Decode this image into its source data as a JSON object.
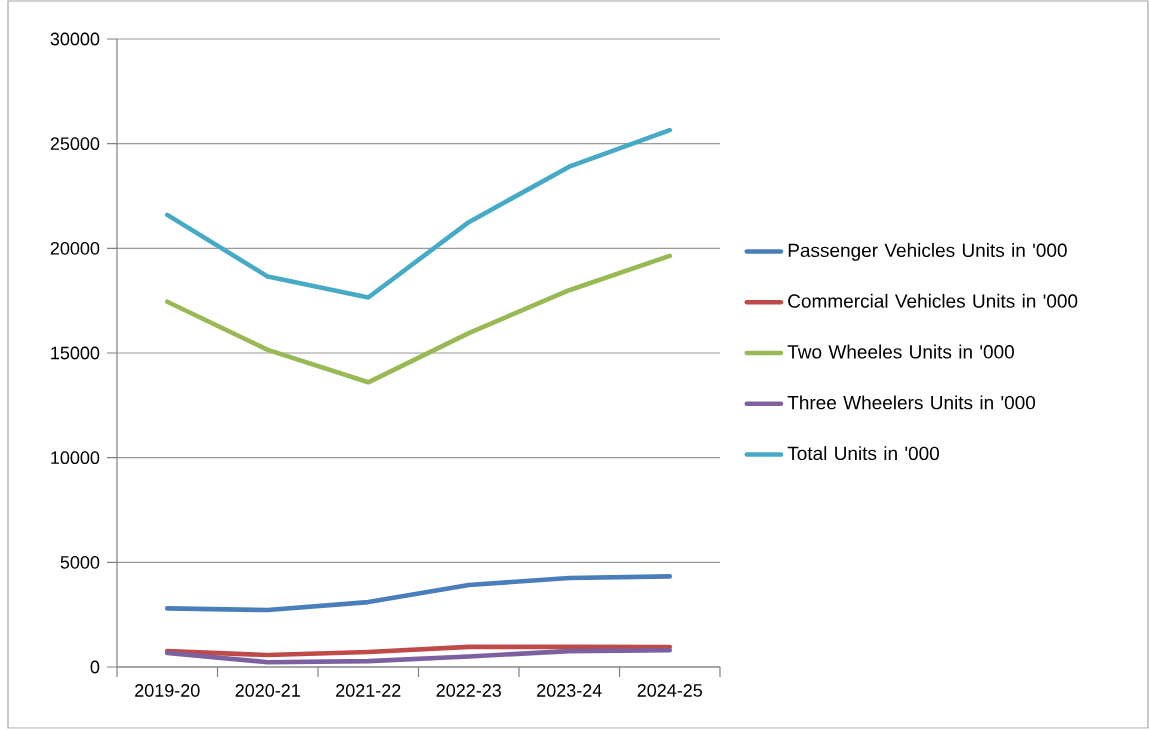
{
  "chart_data": {
    "type": "line",
    "categories": [
      "2019-20",
      "2020-21",
      "2021-22",
      "2022-23",
      "2023-24",
      "2024-25"
    ],
    "series": [
      {
        "name": "Passenger Vehicles Units in '000",
        "color": "#4a7ebb",
        "values": [
          2800,
          2720,
          3100,
          3920,
          4250,
          4330
        ]
      },
      {
        "name": "Commercial Vehicles Units in '000",
        "color": "#be4b48",
        "values": [
          760,
          570,
          720,
          960,
          960,
          950
        ]
      },
      {
        "name": "Two Wheeles Units in '000",
        "color": "#98b954",
        "values": [
          17450,
          15150,
          13600,
          15950,
          18000,
          19640
        ]
      },
      {
        "name": "Three Wheelers Units in '000",
        "color": "#7d60a0",
        "values": [
          670,
          230,
          280,
          500,
          760,
          800
        ]
      },
      {
        "name": "Total Units in '000",
        "color": "#46aac5",
        "values": [
          21600,
          18650,
          17650,
          21250,
          23900,
          25650
        ]
      }
    ],
    "ylim": [
      0,
      30000
    ],
    "yticks": [
      0,
      5000,
      10000,
      15000,
      20000,
      25000,
      30000
    ],
    "grid": "y",
    "legend": "right",
    "marker": "none",
    "line_style": "solid"
  }
}
